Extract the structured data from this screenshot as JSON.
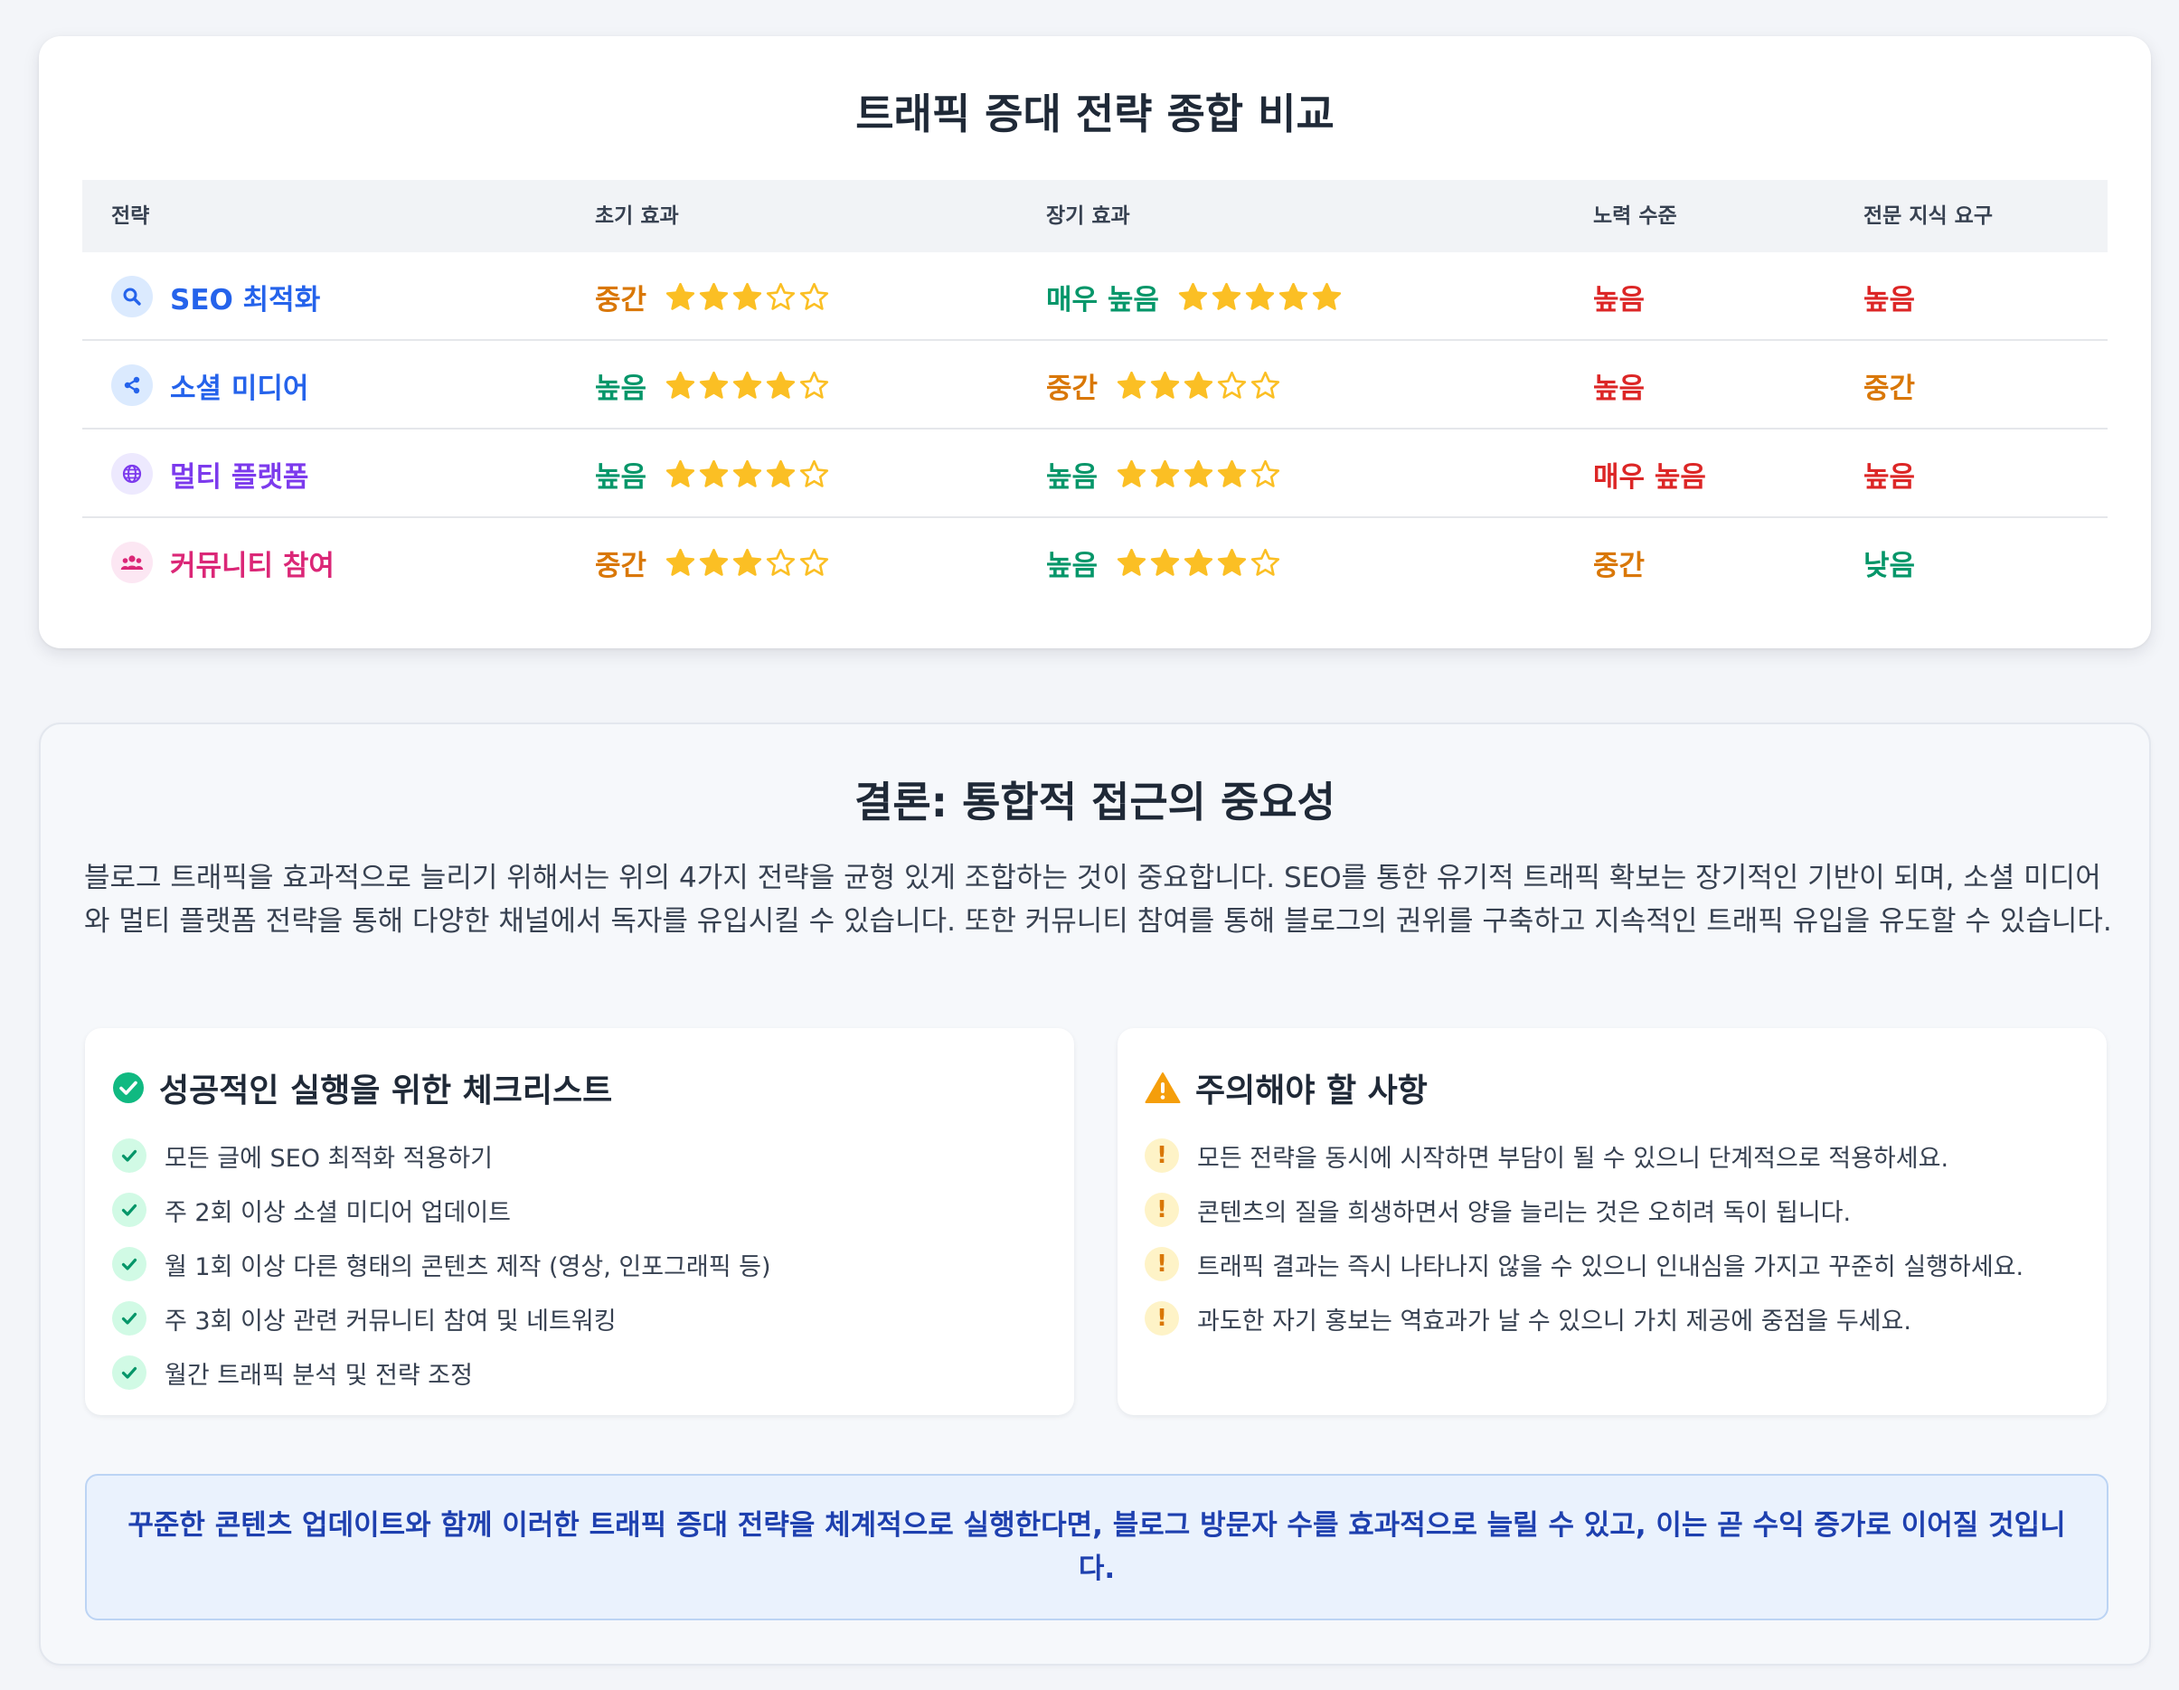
{
  "comparison": {
    "title": "트래픽 증대 전략 종합 비교",
    "headers": [
      "전략",
      "초기 효과",
      "장기 효과",
      "노력 수준",
      "전문 지식 요구"
    ],
    "rows": [
      {
        "strategy": "SEO 최적화",
        "icon": "search-icon",
        "strategy_color": "#2563eb",
        "icon_bg": "#dbeafe",
        "initial": "중간",
        "initial_stars": 3,
        "long_term": "매우 높음",
        "long_term_stars": 5,
        "effort": "높음",
        "expertise": "높음"
      },
      {
        "strategy": "소셜 미디어",
        "icon": "share-icon",
        "strategy_color": "#2563eb",
        "icon_bg": "#dbeafe",
        "initial": "높음",
        "initial_stars": 4,
        "long_term": "중간",
        "long_term_stars": 3,
        "effort": "높음",
        "expertise": "중간"
      },
      {
        "strategy": "멀티 플랫폼",
        "icon": "globe-icon",
        "strategy_color": "#7c3aed",
        "icon_bg": "#ede9fe",
        "initial": "높음",
        "initial_stars": 4,
        "long_term": "높음",
        "long_term_stars": 4,
        "effort": "매우 높음",
        "expertise": "높음"
      },
      {
        "strategy": "커뮤니티 참여",
        "icon": "users-icon",
        "strategy_color": "#db2777",
        "icon_bg": "#fce7f3",
        "initial": "중간",
        "initial_stars": 3,
        "long_term": "높음",
        "long_term_stars": 4,
        "effort": "중간",
        "expertise": "낮음"
      }
    ]
  },
  "conclusion": {
    "title": "결론: 통합적 접근의 중요성",
    "paragraph": "블로그 트래픽을 효과적으로 늘리기 위해서는 위의 4가지 전략을 균형 있게 조합하는 것이 중요합니다. SEO를 통한 유기적 트래픽 확보는 장기적인 기반이 되며, 소셜 미디어와 멀티 플랫폼 전략을 통해 다양한 채널에서 독자를 유입시킬 수 있습니다. 또한 커뮤니티 참여를 통해 블로그의 권위를 구축하고 지속적인 트래픽 유입을 유도할 수 있습니다.",
    "checklist": {
      "title": "성공적인 실행을 위한 체크리스트",
      "items": [
        "모든 글에 SEO 최적화 적용하기",
        "주 2회 이상 소셜 미디어 업데이트",
        "월 1회 이상 다른 형태의 콘텐츠 제작 (영상, 인포그래픽 등)",
        "주 3회 이상 관련 커뮤니티 참여 및 네트워킹",
        "월간 트래픽 분석 및 전략 조정"
      ]
    },
    "cautions": {
      "title": "주의해야 할 사항",
      "items": [
        "모든 전략을 동시에 시작하면 부담이 될 수 있으니 단계적으로 적용하세요.",
        "콘텐츠의 질을 희생하면서 양을 늘리는 것은 오히려 독이 됩니다.",
        "트래픽 결과는 즉시 나타나지 않을 수 있으니 인내심을 가지고 꾸준히 실행하세요.",
        "과도한 자기 홍보는 역효과가 날 수 있으니 가치 제공에 중점을 두세요."
      ],
      "bullet": "!"
    },
    "callout": "꾸준한 콘텐츠 업데이트와 함께 이러한 트래픽 증대 전략을 체계적으로 실행한다면, 블로그 방문자 수를 효과적으로 늘릴 수 있고, 이는 곧 수익 증가로 이어질 것입니다."
  },
  "colors": {
    "level_high": "#059669",
    "level_mid": "#d97706",
    "effort_high": "#dc2626",
    "star": "#fbbf24"
  }
}
